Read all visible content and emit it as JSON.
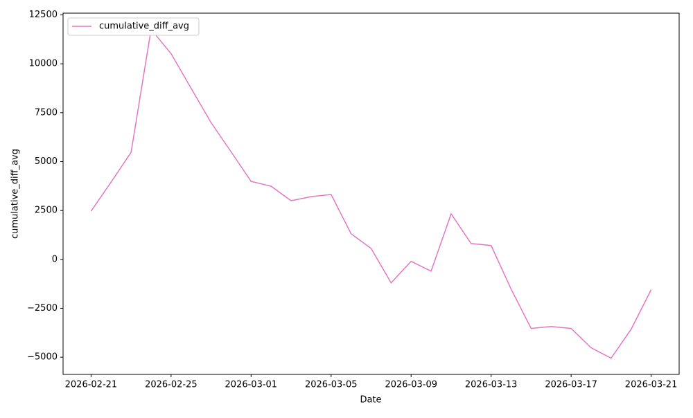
{
  "chart_data": {
    "type": "line",
    "x_label": "Date",
    "y_label": "cumulative_diff_avg",
    "x": [
      "2026-02-21",
      "2026-02-22",
      "2026-02-23",
      "2026-02-24",
      "2026-02-25",
      "2026-02-26",
      "2026-02-27",
      "2026-02-28",
      "2026-03-01",
      "2026-03-02",
      "2026-03-03",
      "2026-03-04",
      "2026-03-05",
      "2026-03-06",
      "2026-03-07",
      "2026-03-08",
      "2026-03-09",
      "2026-03-10",
      "2026-03-11",
      "2026-03-12",
      "2026-03-13",
      "2026-03-14",
      "2026-03-15",
      "2026-03-16",
      "2026-03-17",
      "2026-03-18",
      "2026-03-19",
      "2026-03-20",
      "2026-03-21"
    ],
    "series": [
      {
        "name": "cumulative_diff_avg",
        "color": "#e377c2",
        "values": [
          2470,
          3950,
          5470,
          11760,
          10520,
          8750,
          6990,
          5500,
          3990,
          3740,
          3000,
          3210,
          3320,
          1310,
          560,
          -1200,
          -100,
          -600,
          2330,
          810,
          710,
          -1520,
          -3530,
          -3430,
          -3530,
          -4520,
          -5050,
          -3570,
          -1550
        ]
      }
    ],
    "xticks": [
      "2026-02-21",
      "2026-02-25",
      "2026-03-01",
      "2026-03-05",
      "2026-03-09",
      "2026-03-13",
      "2026-03-17",
      "2026-03-21"
    ],
    "ylim": [
      -5880,
      12590
    ],
    "yticks": [
      {
        "value": -5000,
        "label": "−5000"
      },
      {
        "value": -2500,
        "label": "−2500"
      },
      0,
      2500,
      5000,
      7500,
      10000,
      12500
    ],
    "legend": "upper left"
  }
}
